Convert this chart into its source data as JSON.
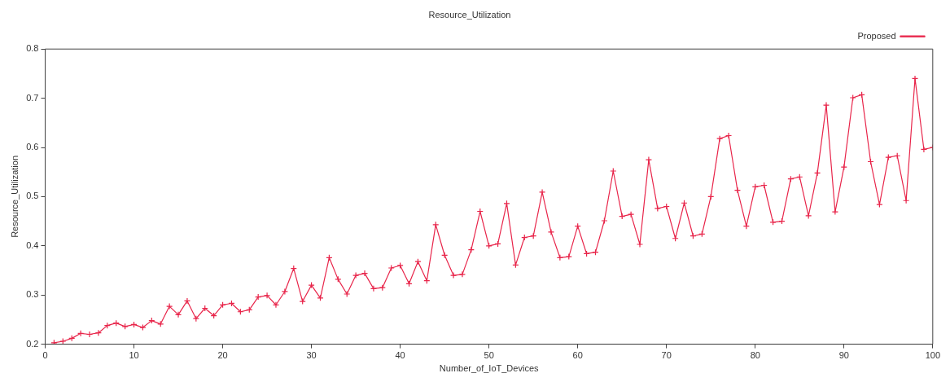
{
  "chart_data": {
    "type": "line",
    "title": "Resource_Utilization",
    "xlabel": "Number_of_IoT_Devices",
    "ylabel": "Resource_Utilization",
    "x": [
      1,
      2,
      3,
      4,
      5,
      6,
      7,
      8,
      9,
      10,
      11,
      12,
      13,
      14,
      15,
      16,
      17,
      18,
      19,
      20,
      21,
      22,
      23,
      24,
      25,
      26,
      27,
      28,
      29,
      30,
      31,
      32,
      33,
      34,
      35,
      36,
      37,
      38,
      39,
      40,
      41,
      42,
      43,
      44,
      45,
      46,
      47,
      48,
      49,
      50,
      51,
      52,
      53,
      54,
      55,
      56,
      57,
      58,
      59,
      60,
      61,
      62,
      63,
      64,
      65,
      66,
      67,
      68,
      69,
      70,
      71,
      72,
      73,
      74,
      75,
      76,
      77,
      78,
      79,
      80,
      81,
      82,
      83,
      84,
      85,
      86,
      87,
      88,
      89,
      90,
      91,
      92,
      93,
      94,
      95,
      96,
      97,
      98,
      99,
      100
    ],
    "series": [
      {
        "name": "Proposed",
        "color": "#e8254a",
        "values": [
          0.203,
          0.206,
          0.212,
          0.222,
          0.22,
          0.223,
          0.238,
          0.243,
          0.236,
          0.24,
          0.234,
          0.248,
          0.241,
          0.277,
          0.26,
          0.288,
          0.252,
          0.273,
          0.258,
          0.28,
          0.283,
          0.266,
          0.27,
          0.296,
          0.299,
          0.28,
          0.307,
          0.354,
          0.287,
          0.32,
          0.294,
          0.376,
          0.332,
          0.302,
          0.34,
          0.344,
          0.313,
          0.315,
          0.355,
          0.36,
          0.323,
          0.368,
          0.329,
          0.443,
          0.381,
          0.34,
          0.342,
          0.392,
          0.47,
          0.4,
          0.404,
          0.486,
          0.361,
          0.417,
          0.42,
          0.509,
          0.428,
          0.376,
          0.378,
          0.44,
          0.384,
          0.387,
          0.451,
          0.552,
          0.46,
          0.464,
          0.403,
          0.575,
          0.476,
          0.48,
          0.415,
          0.487,
          0.42,
          0.424,
          0.5,
          0.618,
          0.624,
          0.513,
          0.44,
          0.52,
          0.523,
          0.448,
          0.45,
          0.536,
          0.54,
          0.461,
          0.548,
          0.686,
          0.469,
          0.56,
          0.701,
          0.707,
          0.571,
          0.484,
          0.58,
          0.583,
          0.492,
          0.74,
          0.596,
          0.6
        ]
      }
    ],
    "xlim": [
      0,
      100
    ],
    "xticks": [
      0,
      10,
      20,
      30,
      40,
      50,
      60,
      70,
      80,
      90,
      100
    ],
    "ylim": [
      0.2,
      0.8
    ],
    "yticks": [
      0.2,
      0.3,
      0.4,
      0.5,
      0.6,
      0.7,
      0.8
    ],
    "grid": false,
    "legend": "top right",
    "marker": "cross",
    "line_style": "solid"
  }
}
